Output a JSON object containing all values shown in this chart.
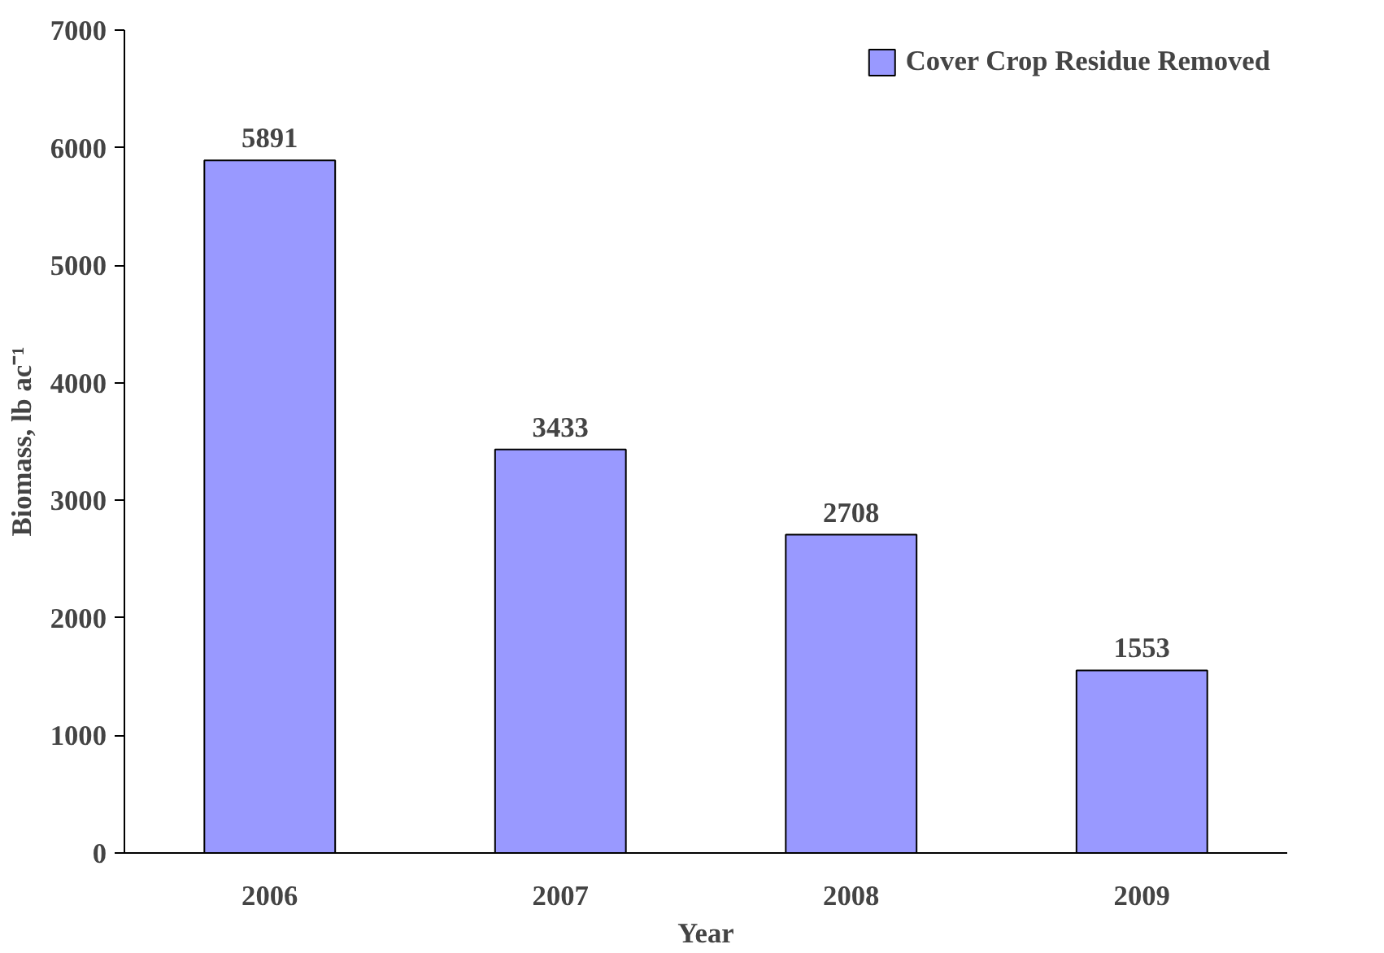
{
  "chart_data": {
    "type": "bar",
    "categories": [
      "2006",
      "2007",
      "2008",
      "2009"
    ],
    "series": [
      {
        "name": "Cover Crop Residue Removed",
        "color": "#9999ff",
        "values": [
          5891,
          3433,
          2708,
          1553
        ]
      }
    ],
    "xlabel": "Year",
    "ylabel": "Biomass, lb ac⁻¹",
    "ylim": [
      0,
      7000
    ],
    "yticks": [
      0,
      1000,
      2000,
      3000,
      4000,
      5000,
      6000,
      7000
    ],
    "data_labels": true,
    "grid": false,
    "legend": "top right"
  }
}
